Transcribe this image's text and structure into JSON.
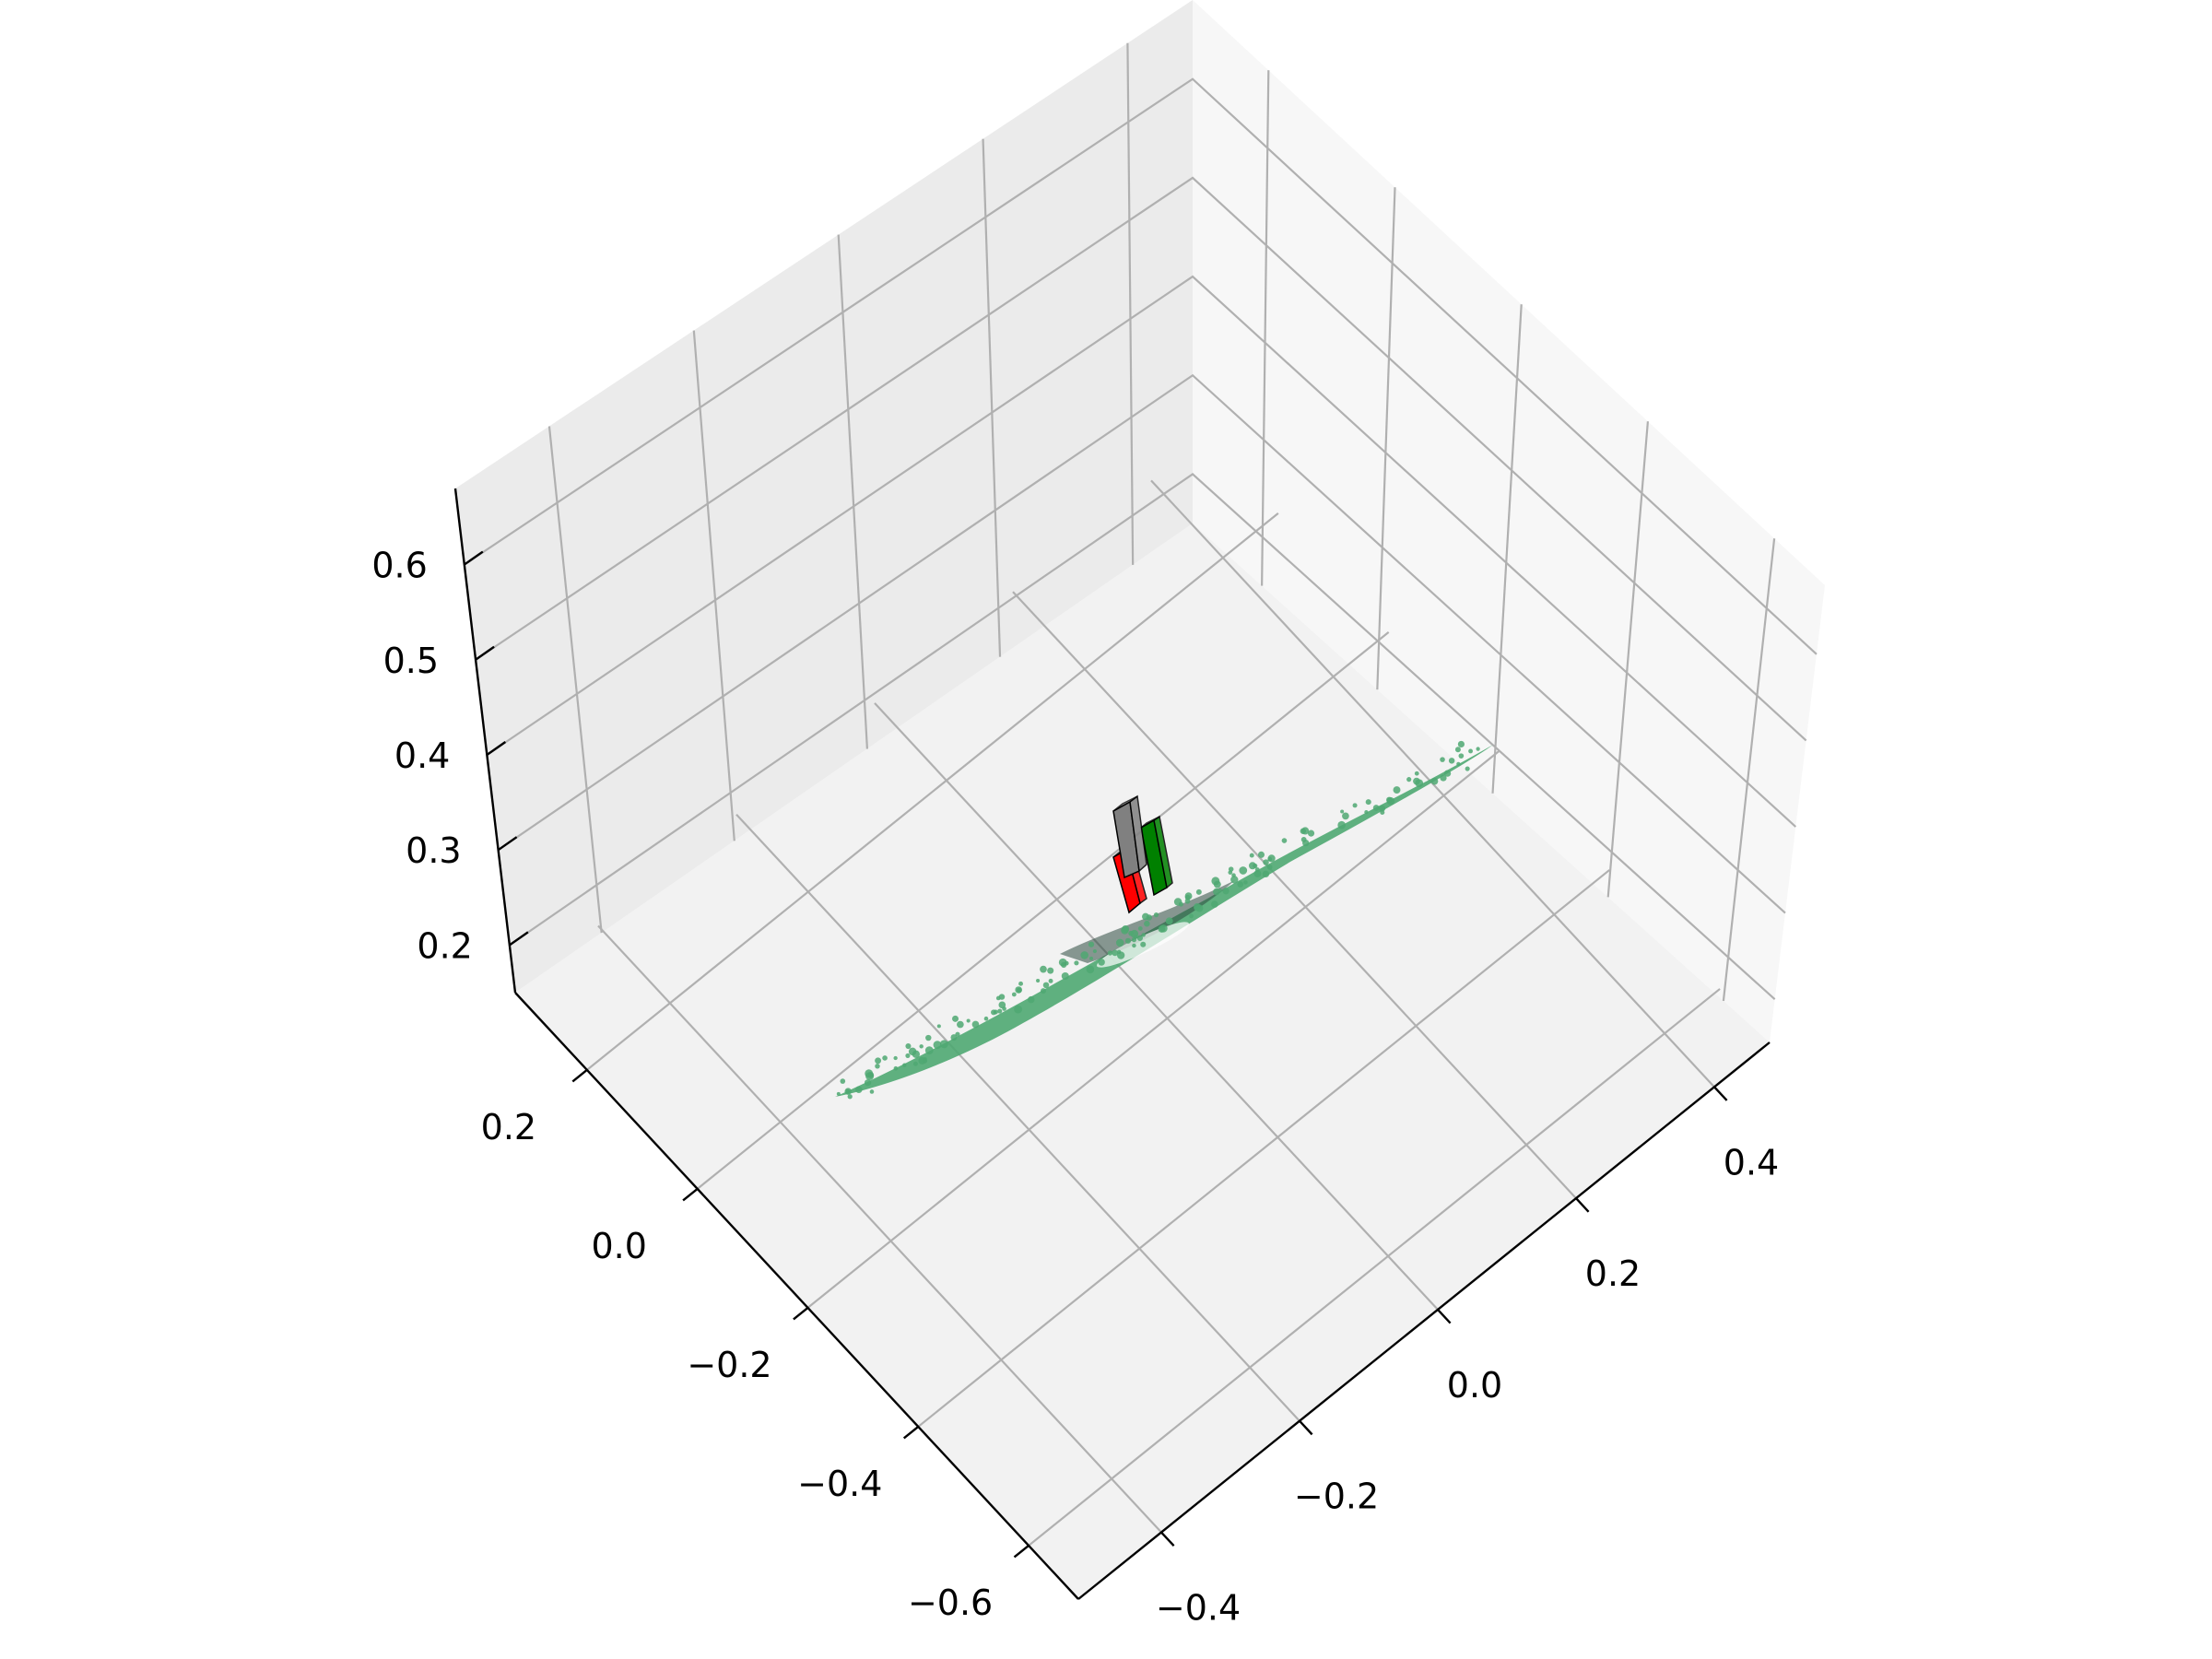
{
  "chart_data": {
    "type": "scatter3d",
    "title": "",
    "grid": true,
    "axes": {
      "x": {
        "label": "",
        "ticks": [
          -0.4,
          -0.2,
          0.0,
          0.2,
          0.4
        ],
        "tick_labels": [
          "−0.4",
          "−0.2",
          "0.0",
          "0.2",
          "0.4"
        ]
      },
      "y": {
        "label": "",
        "ticks": [
          -0.6,
          -0.4,
          -0.2,
          0.0,
          0.2
        ],
        "tick_labels": [
          "−0.6",
          "−0.4",
          "−0.2",
          "0.0",
          "0.2"
        ]
      },
      "z": {
        "label": "",
        "ticks": [
          0.2,
          0.3,
          0.4,
          0.5,
          0.6
        ],
        "tick_labels": [
          "0.2",
          "0.3",
          "0.4",
          "0.5",
          "0.6"
        ]
      }
    },
    "colors": {
      "pane_floor": "#f2f2f2",
      "pane_wall_left": "#ebebeb",
      "pane_wall_right": "#f7f7f7",
      "grid": "#b0b0b0",
      "axis_line": "#000000",
      "point_cloud": "#4fa872",
      "point_cloud_dark": "#2e4a40",
      "gripper_red": "#ff0000",
      "gripper_green": "#008000",
      "gripper_gray": "#808080"
    },
    "series": [
      {
        "type": "point_cloud",
        "description_color": "point_cloud"
      },
      {
        "type": "box_markers",
        "colors": [
          "gripper_red",
          "gripper_green",
          "gripper_gray"
        ]
      }
    ]
  }
}
